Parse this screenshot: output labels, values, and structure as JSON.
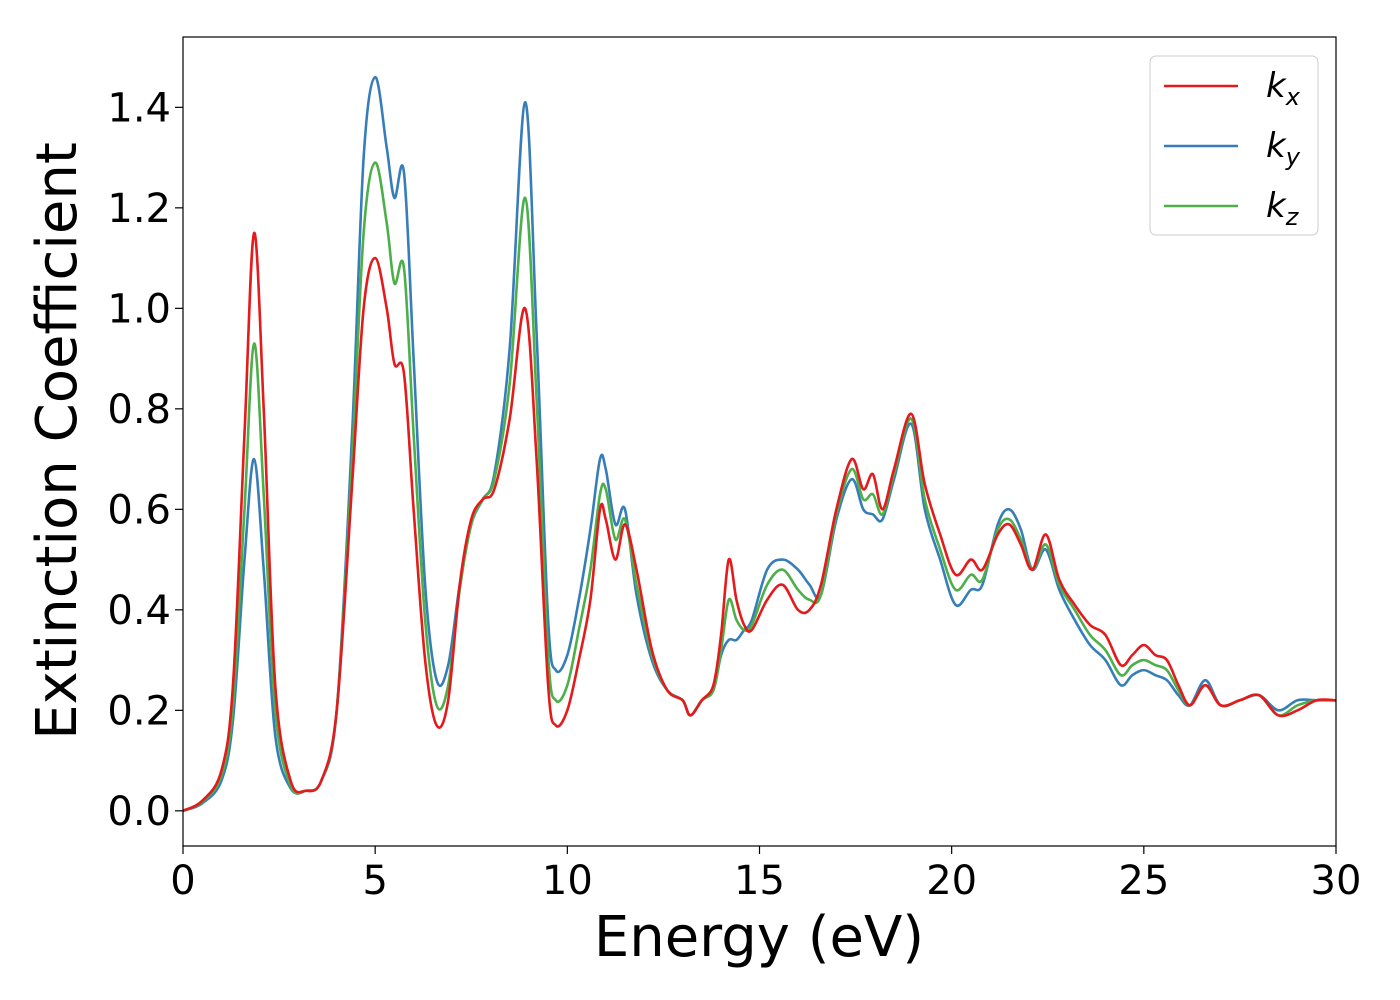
{
  "chart_data": {
    "type": "line",
    "title": "",
    "xlabel": "Energy (eV)",
    "ylabel": "Extinction Coefficient",
    "xlim": [
      0,
      30
    ],
    "ylim": [
      -0.07,
      1.54
    ],
    "xticks": [
      0,
      5,
      10,
      15,
      20,
      25,
      30
    ],
    "xtick_labels": [
      "0",
      "5",
      "10",
      "15",
      "20",
      "25",
      "30"
    ],
    "yticks": [
      0.0,
      0.2,
      0.4,
      0.6,
      0.8,
      1.0,
      1.2,
      1.4
    ],
    "ytick_labels": [
      "0.0",
      "0.2",
      "0.4",
      "0.6",
      "0.8",
      "1.0",
      "1.2",
      "1.4"
    ],
    "grid": false,
    "legend_position": "top-right",
    "series": [
      {
        "name": "kx",
        "base": "k",
        "sub": "x",
        "color": "#e41a1c",
        "x": [
          0,
          0.5,
          1.0,
          1.3,
          1.6,
          1.85,
          2.1,
          2.4,
          2.8,
          3.2,
          3.6,
          4.0,
          4.4,
          4.7,
          5.0,
          5.3,
          5.5,
          5.75,
          6.0,
          6.3,
          6.6,
          6.9,
          7.2,
          7.5,
          7.8,
          8.1,
          8.5,
          8.9,
          9.2,
          9.5,
          9.7,
          10.0,
          10.3,
          10.6,
          10.85,
          11.0,
          11.25,
          11.5,
          11.8,
          12.2,
          12.6,
          13.0,
          13.2,
          13.5,
          13.8,
          14.0,
          14.2,
          14.4,
          14.6,
          14.8,
          15.2,
          15.6,
          16.0,
          16.3,
          16.6,
          17.0,
          17.4,
          17.7,
          17.95,
          18.2,
          18.5,
          18.95,
          19.3,
          19.7,
          20.1,
          20.5,
          20.8,
          21.2,
          21.5,
          21.8,
          22.1,
          22.45,
          22.8,
          23.2,
          23.6,
          24.0,
          24.4,
          24.7,
          25.0,
          25.3,
          25.6,
          25.9,
          26.2,
          26.6,
          27.0,
          27.5,
          28.0,
          28.5,
          29.0,
          29.5,
          30.0
        ],
        "y": [
          0.0,
          0.02,
          0.08,
          0.25,
          0.75,
          1.15,
          0.8,
          0.25,
          0.06,
          0.04,
          0.06,
          0.2,
          0.65,
          1.0,
          1.1,
          1.0,
          0.89,
          0.87,
          0.6,
          0.3,
          0.17,
          0.22,
          0.45,
          0.58,
          0.62,
          0.64,
          0.78,
          1.0,
          0.7,
          0.25,
          0.17,
          0.2,
          0.3,
          0.42,
          0.6,
          0.58,
          0.5,
          0.57,
          0.48,
          0.32,
          0.24,
          0.22,
          0.19,
          0.22,
          0.25,
          0.35,
          0.5,
          0.42,
          0.37,
          0.36,
          0.42,
          0.45,
          0.4,
          0.4,
          0.45,
          0.6,
          0.7,
          0.64,
          0.67,
          0.6,
          0.68,
          0.79,
          0.65,
          0.55,
          0.47,
          0.5,
          0.48,
          0.55,
          0.57,
          0.53,
          0.48,
          0.55,
          0.46,
          0.41,
          0.37,
          0.35,
          0.29,
          0.31,
          0.33,
          0.31,
          0.3,
          0.25,
          0.21,
          0.25,
          0.21,
          0.22,
          0.23,
          0.19,
          0.2,
          0.22,
          0.22
        ]
      },
      {
        "name": "ky",
        "base": "k",
        "sub": "y",
        "color": "#377eb8",
        "x": [
          0,
          0.5,
          1.0,
          1.3,
          1.6,
          1.85,
          2.1,
          2.4,
          2.8,
          3.2,
          3.6,
          4.0,
          4.4,
          4.7,
          5.0,
          5.3,
          5.5,
          5.75,
          6.0,
          6.3,
          6.6,
          6.9,
          7.2,
          7.5,
          7.8,
          8.1,
          8.5,
          8.9,
          9.2,
          9.5,
          9.7,
          10.0,
          10.3,
          10.6,
          10.85,
          11.0,
          11.25,
          11.5,
          11.8,
          12.2,
          12.6,
          13.0,
          13.2,
          13.5,
          13.8,
          14.0,
          14.2,
          14.4,
          14.6,
          14.8,
          15.2,
          15.6,
          16.0,
          16.3,
          16.6,
          17.0,
          17.4,
          17.7,
          17.95,
          18.2,
          18.5,
          18.95,
          19.3,
          19.7,
          20.1,
          20.5,
          20.8,
          21.2,
          21.5,
          21.8,
          22.1,
          22.45,
          22.8,
          23.2,
          23.6,
          24.0,
          24.4,
          24.7,
          25.0,
          25.3,
          25.6,
          25.9,
          26.2,
          26.6,
          27.0,
          27.5,
          28.0,
          28.5,
          29.0,
          29.5,
          30.0
        ],
        "y": [
          0.0,
          0.015,
          0.06,
          0.18,
          0.5,
          0.7,
          0.48,
          0.15,
          0.045,
          0.04,
          0.06,
          0.2,
          0.75,
          1.3,
          1.46,
          1.32,
          1.22,
          1.27,
          0.9,
          0.45,
          0.26,
          0.29,
          0.45,
          0.57,
          0.62,
          0.67,
          0.92,
          1.41,
          0.95,
          0.38,
          0.28,
          0.31,
          0.42,
          0.56,
          0.7,
          0.68,
          0.57,
          0.6,
          0.43,
          0.3,
          0.24,
          0.22,
          0.19,
          0.22,
          0.24,
          0.31,
          0.34,
          0.34,
          0.36,
          0.38,
          0.48,
          0.5,
          0.48,
          0.45,
          0.43,
          0.58,
          0.66,
          0.6,
          0.59,
          0.58,
          0.66,
          0.77,
          0.6,
          0.5,
          0.41,
          0.44,
          0.45,
          0.57,
          0.6,
          0.56,
          0.48,
          0.52,
          0.44,
          0.38,
          0.33,
          0.3,
          0.25,
          0.27,
          0.28,
          0.27,
          0.26,
          0.23,
          0.21,
          0.26,
          0.21,
          0.22,
          0.23,
          0.2,
          0.22,
          0.22,
          0.22
        ]
      },
      {
        "name": "kz",
        "base": "k",
        "sub": "z",
        "color": "#4daf4a",
        "x": [
          0,
          0.5,
          1.0,
          1.3,
          1.6,
          1.85,
          2.1,
          2.4,
          2.8,
          3.2,
          3.6,
          4.0,
          4.4,
          4.7,
          5.0,
          5.3,
          5.5,
          5.75,
          6.0,
          6.3,
          6.6,
          6.9,
          7.2,
          7.5,
          7.8,
          8.1,
          8.5,
          8.9,
          9.2,
          9.5,
          9.7,
          10.0,
          10.3,
          10.6,
          10.85,
          11.0,
          11.25,
          11.5,
          11.8,
          12.2,
          12.6,
          13.0,
          13.2,
          13.5,
          13.8,
          14.0,
          14.2,
          14.4,
          14.6,
          14.8,
          15.2,
          15.6,
          16.0,
          16.3,
          16.6,
          17.0,
          17.4,
          17.7,
          17.95,
          18.2,
          18.5,
          18.95,
          19.3,
          19.7,
          20.1,
          20.5,
          20.8,
          21.2,
          21.5,
          21.8,
          22.1,
          22.45,
          22.8,
          23.2,
          23.6,
          24.0,
          24.4,
          24.7,
          25.0,
          25.3,
          25.6,
          25.9,
          26.2,
          26.6,
          27.0,
          27.5,
          28.0,
          28.5,
          29.0,
          29.5,
          30.0
        ],
        "y": [
          0.0,
          0.018,
          0.07,
          0.21,
          0.6,
          0.93,
          0.63,
          0.2,
          0.05,
          0.04,
          0.06,
          0.2,
          0.7,
          1.15,
          1.29,
          1.17,
          1.05,
          1.08,
          0.75,
          0.38,
          0.21,
          0.25,
          0.44,
          0.57,
          0.62,
          0.66,
          0.85,
          1.22,
          0.82,
          0.31,
          0.22,
          0.25,
          0.36,
          0.48,
          0.63,
          0.64,
          0.54,
          0.58,
          0.45,
          0.31,
          0.24,
          0.22,
          0.19,
          0.22,
          0.24,
          0.32,
          0.42,
          0.38,
          0.36,
          0.37,
          0.45,
          0.48,
          0.44,
          0.42,
          0.43,
          0.59,
          0.68,
          0.62,
          0.63,
          0.59,
          0.67,
          0.78,
          0.62,
          0.52,
          0.44,
          0.47,
          0.46,
          0.56,
          0.58,
          0.54,
          0.48,
          0.53,
          0.45,
          0.4,
          0.35,
          0.32,
          0.27,
          0.29,
          0.3,
          0.29,
          0.28,
          0.24,
          0.21,
          0.25,
          0.21,
          0.22,
          0.23,
          0.19,
          0.21,
          0.22,
          0.22
        ]
      }
    ]
  }
}
